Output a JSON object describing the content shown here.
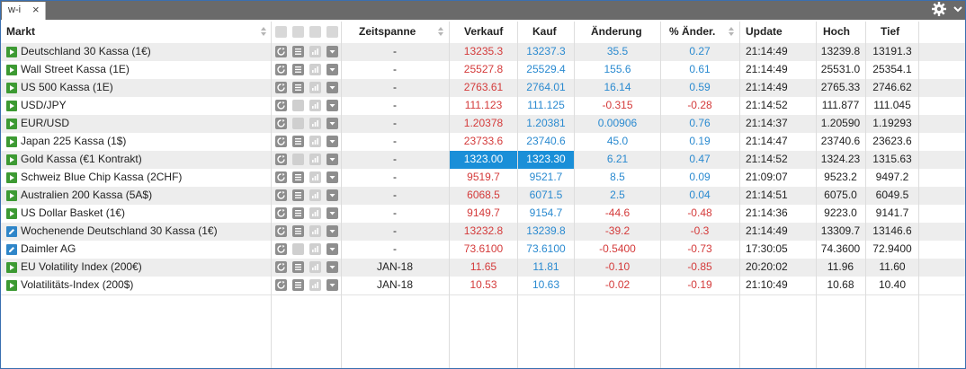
{
  "window": {
    "tab_label": "w-i",
    "tab_close": "×"
  },
  "colors": {
    "up": "#2a8ad0",
    "down": "#d43a3a",
    "highlight": "#1a8fd8",
    "market_green": "#3d9a33",
    "market_blue": "#2f86c9"
  },
  "header": {
    "market": "Markt",
    "zeitspanne": "Zeitspanne",
    "sell": "Verkauf",
    "buy": "Kauf",
    "change": "Änderung",
    "pct": "% Änder.",
    "update": "Update",
    "high": "Hoch",
    "low": "Tief"
  },
  "rows": [
    {
      "name": "Deutschland 30 Kassa (1€)",
      "icon": "play",
      "icons": 4,
      "zeit": "-",
      "sell": "13235.3",
      "buy": "13237.3",
      "chg": "35.5",
      "pct": "0.27",
      "dir": "up",
      "upd": "21:14:49",
      "high": "13239.8",
      "low": "13191.3"
    },
    {
      "name": "Wall Street Kassa (1E)",
      "icon": "play",
      "icons": 4,
      "zeit": "-",
      "sell": "25527.8",
      "buy": "25529.4",
      "chg": "155.6",
      "pct": "0.61",
      "dir": "up",
      "upd": "21:14:49",
      "high": "25531.0",
      "low": "25354.1"
    },
    {
      "name": "US 500 Kassa (1E)",
      "icon": "play",
      "icons": 4,
      "zeit": "-",
      "sell": "2763.61",
      "buy": "2764.01",
      "chg": "16.14",
      "pct": "0.59",
      "dir": "up",
      "upd": "21:14:49",
      "high": "2765.33",
      "low": "2746.62"
    },
    {
      "name": "USD/JPY",
      "icon": "play",
      "icons": 3,
      "zeit": "-",
      "sell": "111.123",
      "buy": "111.125",
      "chg": "-0.315",
      "pct": "-0.28",
      "dir": "down",
      "upd": "21:14:52",
      "high": "111.877",
      "low": "111.045"
    },
    {
      "name": "EUR/USD",
      "icon": "play",
      "icons": 3,
      "zeit": "-",
      "sell": "1.20378",
      "buy": "1.20381",
      "chg": "0.00906",
      "pct": "0.76",
      "dir": "up",
      "upd": "21:14:37",
      "high": "1.20590",
      "low": "1.19293"
    },
    {
      "name": "Japan 225 Kassa (1$)",
      "icon": "play",
      "icons": 4,
      "zeit": "-",
      "sell": "23733.6",
      "buy": "23740.6",
      "chg": "45.0",
      "pct": "0.19",
      "dir": "up",
      "upd": "21:14:47",
      "high": "23740.6",
      "low": "23623.6"
    },
    {
      "name": "Gold Kassa (€1 Kontrakt)",
      "icon": "play",
      "icons": 3,
      "zeit": "-",
      "sell": "1323.00",
      "buy": "1323.30",
      "chg": "6.21",
      "pct": "0.47",
      "dir": "up",
      "upd": "21:14:52",
      "high": "1324.23",
      "low": "1315.63",
      "highlight": true
    },
    {
      "name": "Schweiz Blue Chip Kassa (2CHF)",
      "icon": "play",
      "icons": 4,
      "zeit": "-",
      "sell": "9519.7",
      "buy": "9521.7",
      "chg": "8.5",
      "pct": "0.09",
      "dir": "up",
      "upd": "21:09:07",
      "high": "9523.2",
      "low": "9497.2"
    },
    {
      "name": "Australien 200 Kassa (5A$)",
      "icon": "play",
      "icons": 4,
      "zeit": "-",
      "sell": "6068.5",
      "buy": "6071.5",
      "chg": "2.5",
      "pct": "0.04",
      "dir": "up",
      "upd": "21:14:51",
      "high": "6075.0",
      "low": "6049.5"
    },
    {
      "name": "US Dollar Basket (1€)",
      "icon": "play",
      "icons": 4,
      "zeit": "-",
      "sell": "9149.7",
      "buy": "9154.7",
      "chg": "-44.6",
      "pct": "-0.48",
      "dir": "down",
      "upd": "21:14:36",
      "high": "9223.0",
      "low": "9141.7"
    },
    {
      "name": "Wochenende Deutschland 30 Kassa (1€)",
      "icon": "pencil",
      "icons": 4,
      "zeit": "-",
      "sell": "13232.8",
      "buy": "13239.8",
      "chg": "-39.2",
      "pct": "-0.3",
      "dir": "down",
      "upd": "21:14:49",
      "high": "13309.7",
      "low": "13146.6"
    },
    {
      "name": "Daimler AG",
      "icon": "pencil",
      "icons": 3,
      "zeit": "-",
      "sell": "73.6100",
      "buy": "73.6100",
      "chg": "-0.5400",
      "pct": "-0.73",
      "dir": "down",
      "upd": "17:30:05",
      "high": "74.3600",
      "low": "72.9400"
    },
    {
      "name": "EU Volatility Index (200€)",
      "icon": "play",
      "icons": 4,
      "zeit": "JAN-18",
      "sell": "11.65",
      "buy": "11.81",
      "chg": "-0.10",
      "pct": "-0.85",
      "dir": "down",
      "upd": "20:20:02",
      "high": "11.96",
      "low": "11.60"
    },
    {
      "name": "Volatilitäts-Index (200$)",
      "icon": "play",
      "icons": 4,
      "zeit": "JAN-18",
      "sell": "10.53",
      "buy": "10.63",
      "chg": "-0.02",
      "pct": "-0.19",
      "dir": "down",
      "upd": "21:10:49",
      "high": "10.68",
      "low": "10.40"
    }
  ]
}
